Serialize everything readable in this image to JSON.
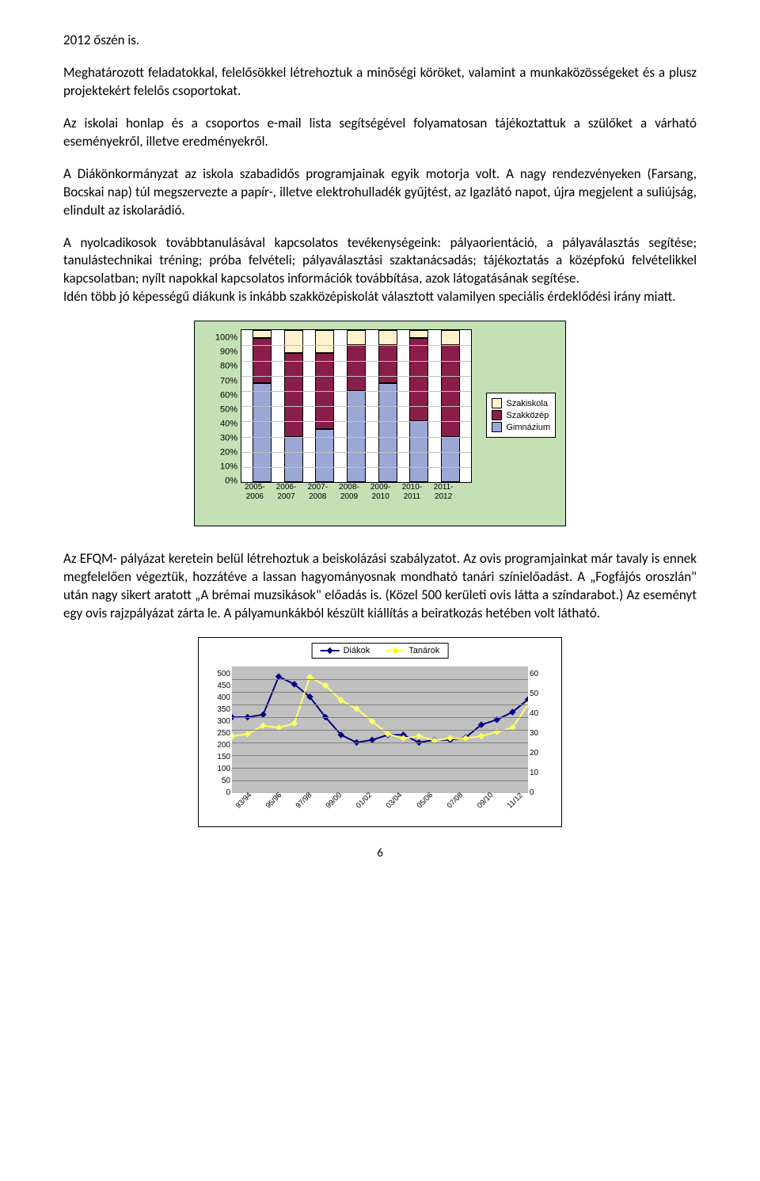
{
  "paragraphs": {
    "p1": "2012 őszén is.",
    "p2": "Meghatározott feladatokkal, felelősökkel létrehoztuk a minőségi köröket, valamint a munkaközösségeket és a plusz projektekért felelős csoportokat.",
    "p3": "Az iskolai honlap és a csoportos e-mail lista segítségével folyamatosan tájékoztattuk a szülőket a várható eseményekről, illetve eredményekről.",
    "p4": "A Diákönkormányzat az iskola szabadidős programjainak egyik motorja volt. A nagy rendezvényeken (Farsang, Bocskai nap) túl megszervezte a papír-, illetve elektrohulladék gyűjtést, az Igazlátó napot, újra megjelent a suliújság, elindult az iskolarádió.",
    "p5": "A nyolcadikosok továbbtanulásával kapcsolatos tevékenységeink: pályaorientáció, a pályaválasztás segítése; tanulástechnikai tréning; próba felvételi; pályaválasztási szaktanácsadás; tájékoztatás a középfokú felvételikkel kapcsolatban; nyílt napokkal kapcsolatos információk továbbítása, azok látogatásának segítése.",
    "p6": "Idén több jó képességű diákunk is inkább szakközépiskolát választott valamilyen speciális érdeklődési irány miatt.",
    "p7": "Az EFQM- pályázat keretein belül létrehoztuk a beiskolázási szabályzatot. Az ovis programjainkat már tavaly is ennek megfelelően végeztük, hozzátéve a lassan hagyományosnak mondható tanári színielőadást. A „Fogfájós oroszlán\" után nagy sikert aratott „A brémai muzsikások\" előadás is. (Közel 500 kerületi ovis látta a színdarabot.) Az eseményt egy ovis rajzpályázat zárta le. A pályamunkákból készült kiállítás a beiratkozás hetében volt látható."
  },
  "bar_chart": {
    "background_color": "#c4e0b4",
    "grid_color": "#c0c0c0",
    "plot_bg": "#ffffff",
    "y_ticks": [
      "100%",
      "90%",
      "80%",
      "70%",
      "60%",
      "50%",
      "40%",
      "30%",
      "20%",
      "10%",
      "0%"
    ],
    "categories": [
      "2005-\n2006",
      "2006-\n2007",
      "2007-\n2008",
      "2008-\n2009",
      "2009-\n2010",
      "2010-\n2011",
      "2011-\n2012"
    ],
    "series": {
      "szakiskola": {
        "label": "Szakiskola",
        "color": "#fff2cc",
        "values": [
          5,
          15,
          15,
          10,
          10,
          5,
          10
        ]
      },
      "szakkozep": {
        "label": "Szakközép",
        "color": "#8a1e4a",
        "values": [
          30,
          55,
          50,
          30,
          25,
          55,
          60
        ]
      },
      "gimnazium": {
        "label": "Gimnázium",
        "color": "#9ba7d5",
        "values": [
          65,
          30,
          35,
          60,
          65,
          40,
          30
        ]
      }
    },
    "legend_order": [
      "szakiskola",
      "szakkozep",
      "gimnazium"
    ],
    "stack_order": [
      "gimnazium",
      "szakkozep",
      "szakiskola"
    ]
  },
  "line_chart": {
    "plot_bg": "#c0c0c0",
    "grid_color": "#808080",
    "legend": {
      "diakok": {
        "label": "Diákok",
        "color": "#00007f",
        "marker": "#00007f"
      },
      "tanarok": {
        "label": "Tanárok",
        "color": "#ffff66",
        "marker": "#ffff00"
      }
    },
    "x_labels": [
      "93/94",
      "95/96",
      "97/98",
      "99/00",
      "01/02",
      "03/04",
      "05/06",
      "07/08",
      "09/10",
      "11/12"
    ],
    "y_left": {
      "min": 0,
      "max": 500,
      "step": 50,
      "ticks": [
        "500",
        "450",
        "400",
        "350",
        "300",
        "250",
        "200",
        "150",
        "100",
        "50",
        "0"
      ]
    },
    "y_right": {
      "min": 0,
      "max": 60,
      "step": 10,
      "ticks": [
        "60",
        "50",
        "40",
        "30",
        "20",
        "10",
        "0"
      ]
    },
    "diakok_values": [
      300,
      300,
      310,
      460,
      430,
      380,
      300,
      230,
      200,
      210,
      230,
      230,
      200,
      210,
      210,
      220,
      270,
      290,
      320,
      370
    ],
    "tanarok_values": [
      27,
      28,
      32,
      31,
      33,
      55,
      51,
      44,
      40,
      34,
      28,
      26,
      27,
      25,
      26,
      26,
      27,
      29,
      31,
      42
    ]
  },
  "page_number": "6"
}
